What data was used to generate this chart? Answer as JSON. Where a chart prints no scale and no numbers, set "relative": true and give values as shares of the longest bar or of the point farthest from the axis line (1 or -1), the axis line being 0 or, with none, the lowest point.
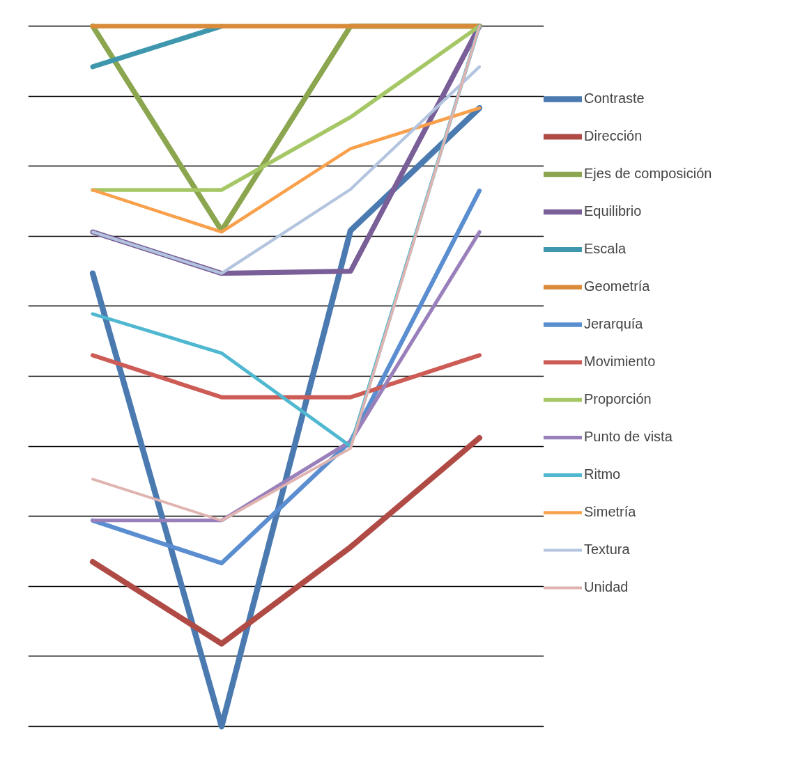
{
  "chart_data": {
    "type": "line",
    "relative": true,
    "categories": [
      null,
      null,
      null,
      null
    ],
    "series": [
      {
        "name": "Contraste",
        "color": "#4a7ab0",
        "values": [
          0.647,
          0,
          0.708,
          0.883
        ]
      },
      {
        "name": "Dirección",
        "color": "#b04a45",
        "values": [
          0.235,
          0.118,
          0.256,
          0.412
        ]
      },
      {
        "name": "Ejes de composición",
        "color": "#8ca650",
        "values": [
          1,
          0.708,
          1,
          1
        ]
      },
      {
        "name": "Equilibrio",
        "color": "#7a5e97",
        "values": [
          0.706,
          0.647,
          0.65,
          1
        ]
      },
      {
        "name": "Escala",
        "color": "#3e97ad",
        "values": [
          0.942,
          1,
          null,
          null
        ]
      },
      {
        "name": "Geometría",
        "color": "#d98b3a",
        "values": [
          1,
          1,
          1,
          1
        ]
      },
      {
        "name": "Jerarquía",
        "color": "#5a8ed0",
        "values": [
          0.294,
          0.233,
          0.407,
          0.765
        ]
      },
      {
        "name": "Movimiento",
        "color": "#cc5c55",
        "values": [
          0.53,
          0.47,
          0.47,
          0.53
        ]
      },
      {
        "name": "Proporción",
        "color": "#a5c765",
        "values": [
          0.766,
          0.766,
          0.87,
          1
        ]
      },
      {
        "name": "Punto de vista",
        "color": "#9a80bb",
        "values": [
          0.294,
          0.294,
          0.407,
          0.706
        ]
      },
      {
        "name": "Ritmo",
        "color": "#4fb8d0",
        "values": [
          0.589,
          0.533,
          0.4,
          1
        ]
      },
      {
        "name": "Simetría",
        "color": "#f8a04c",
        "values": [
          0.766,
          0.706,
          0.825,
          0.883
        ]
      },
      {
        "name": "Textura",
        "color": "#b3c4df",
        "values": [
          0.706,
          0.647,
          0.767,
          0.942
        ]
      },
      {
        "name": "Unidad",
        "color": "#dfb4b0",
        "values": [
          0.353,
          0.294,
          0.397,
          1
        ]
      }
    ],
    "grid": "y",
    "legend": "right",
    "line_style": "solid",
    "marker": "none"
  }
}
